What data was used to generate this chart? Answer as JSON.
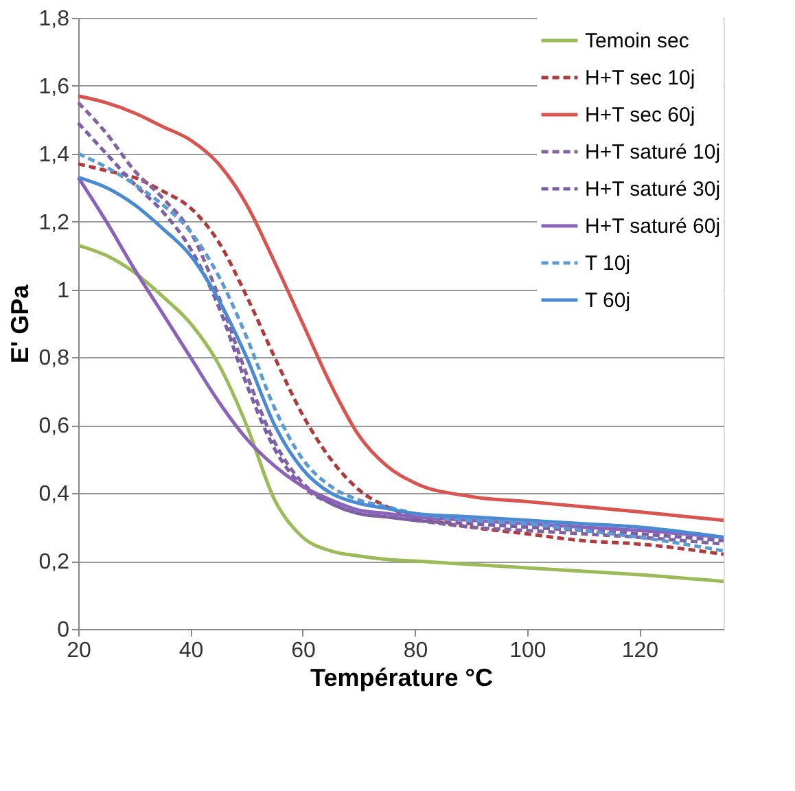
{
  "chart_data": {
    "type": "line",
    "xlabel": "Température °C",
    "ylabel": "E' GPa",
    "xlim": [
      20,
      135
    ],
    "xticks": [
      20,
      40,
      60,
      80,
      100,
      120
    ],
    "ylim": [
      0,
      1.8
    ],
    "yticks": [
      0,
      {
        "value": 0.2,
        "label": "0,2"
      },
      {
        "value": 0.4,
        "label": "0,4"
      },
      {
        "value": 0.6,
        "label": "0,6"
      },
      {
        "value": 0.8,
        "label": "0,8"
      },
      1,
      {
        "value": 1.2,
        "label": "1,2"
      },
      {
        "value": 1.4,
        "label": "1,4"
      },
      {
        "value": 1.6,
        "label": "1,6"
      },
      {
        "value": 1.8,
        "label": "1,8"
      }
    ],
    "grid": "y",
    "legend": "top right",
    "marker": "none",
    "x": [
      20,
      25,
      30,
      35,
      40,
      45,
      50,
      55,
      60,
      65,
      70,
      75,
      80,
      90,
      100,
      110,
      120,
      135
    ],
    "series": [
      {
        "name": "Temoin sec",
        "color": "#9bbb59",
        "line_style": "solid",
        "values": [
          1.13,
          1.1,
          1.05,
          0.98,
          0.9,
          0.78,
          0.6,
          0.38,
          0.27,
          0.23,
          0.215,
          0.205,
          0.2,
          0.19,
          0.18,
          0.17,
          0.16,
          0.14
        ]
      },
      {
        "name": "H+T sec 10j",
        "color": "#b03a3a",
        "line_style": "dashed",
        "values": [
          1.37,
          1.35,
          1.33,
          1.29,
          1.24,
          1.14,
          0.98,
          0.8,
          0.63,
          0.5,
          0.41,
          0.36,
          0.33,
          0.3,
          0.28,
          0.26,
          0.25,
          0.22
        ]
      },
      {
        "name": "H+T sec 60j",
        "color": "#d9534f",
        "line_style": "solid",
        "values": [
          1.57,
          1.55,
          1.52,
          1.48,
          1.44,
          1.37,
          1.25,
          1.08,
          0.9,
          0.72,
          0.57,
          0.48,
          0.43,
          0.39,
          0.375,
          0.36,
          0.345,
          0.32
        ]
      },
      {
        "name": "H+T saturé 10j",
        "color": "#8064a2",
        "line_style": "dashed",
        "values": [
          1.55,
          1.46,
          1.35,
          1.27,
          1.17,
          0.98,
          0.75,
          0.55,
          0.43,
          0.37,
          0.34,
          0.33,
          0.32,
          0.3,
          0.29,
          0.28,
          0.27,
          0.25
        ]
      },
      {
        "name": "H+T saturé 30j",
        "color": "#7b5ea8",
        "line_style": "dashed",
        "values": [
          1.49,
          1.4,
          1.31,
          1.23,
          1.12,
          0.95,
          0.72,
          0.53,
          0.42,
          0.37,
          0.34,
          0.33,
          0.32,
          0.31,
          0.3,
          0.29,
          0.28,
          0.26
        ]
      },
      {
        "name": "H+T saturé 60j",
        "color": "#8a63b8",
        "line_style": "solid",
        "values": [
          1.33,
          1.2,
          1.06,
          0.93,
          0.8,
          0.67,
          0.56,
          0.48,
          0.42,
          0.38,
          0.35,
          0.34,
          0.33,
          0.32,
          0.31,
          0.3,
          0.29,
          0.27
        ]
      },
      {
        "name": "T 10j",
        "color": "#5b9bd5",
        "line_style": "dashed",
        "values": [
          1.4,
          1.36,
          1.31,
          1.25,
          1.17,
          1.04,
          0.86,
          0.65,
          0.5,
          0.42,
          0.38,
          0.36,
          0.34,
          0.32,
          0.31,
          0.29,
          0.27,
          0.23
        ]
      },
      {
        "name": "T 60j",
        "color": "#4a8ad4",
        "line_style": "solid",
        "values": [
          1.33,
          1.3,
          1.25,
          1.18,
          1.1,
          0.97,
          0.8,
          0.6,
          0.47,
          0.4,
          0.37,
          0.355,
          0.34,
          0.33,
          0.32,
          0.31,
          0.3,
          0.27
        ]
      }
    ]
  }
}
